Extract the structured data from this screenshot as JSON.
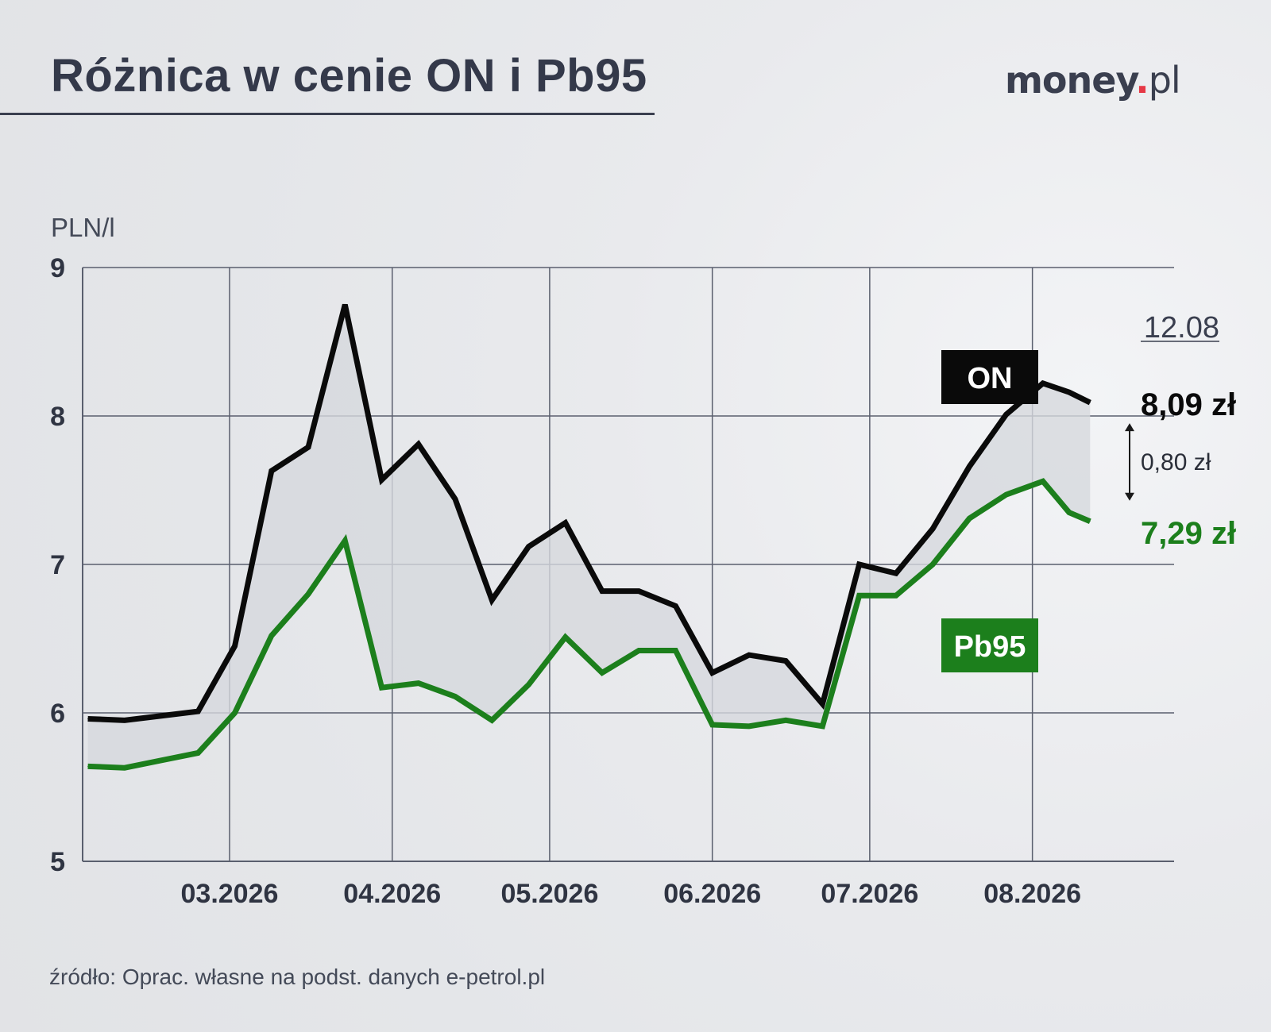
{
  "header": {
    "title": "Różnica w cenie ON i Pb95",
    "logo_text_bold": "money",
    "logo_dot": ".",
    "logo_text_light": "pl"
  },
  "source": "źródło: Oprac. własne na podst. danych e-petrol.pl",
  "colors": {
    "on": "#0a0a0a",
    "pb95": "#1c7f1c",
    "fill": "#d6d8dd",
    "grid": "#5a5f6e",
    "logo_dot": "#e63946"
  },
  "chart_data": {
    "type": "line",
    "ylabel": "PLN/l",
    "ylim": [
      5,
      9
    ],
    "yticks": [
      "5",
      "6",
      "7",
      "8",
      "9"
    ],
    "xticks": [
      "03.2026",
      "04.2026",
      "05.2026",
      "06.2026",
      "07.2026",
      "08.2026"
    ],
    "x": [
      "2026-02-02",
      "2026-02-09",
      "2026-02-16",
      "2026-02-23",
      "2026-03-02",
      "2026-03-09",
      "2026-03-16",
      "2026-03-23",
      "2026-03-30",
      "2026-04-06",
      "2026-04-13",
      "2026-04-20",
      "2026-04-27",
      "2026-05-04",
      "2026-05-11",
      "2026-05-18",
      "2026-05-25",
      "2026-06-01",
      "2026-06-08",
      "2026-06-15",
      "2026-06-22",
      "2026-06-29",
      "2026-07-06",
      "2026-07-13",
      "2026-07-20",
      "2026-07-27",
      "2026-08-03",
      "2026-08-08",
      "2026-08-12"
    ],
    "series": [
      {
        "name": "ON",
        "values": [
          5.96,
          5.95,
          5.98,
          6.01,
          6.45,
          7.63,
          7.79,
          8.75,
          7.57,
          7.81,
          7.44,
          6.76,
          7.12,
          7.28,
          6.82,
          6.82,
          6.72,
          6.27,
          6.39,
          6.35,
          6.06,
          7.0,
          6.94,
          7.24,
          7.66,
          8.01,
          8.22,
          8.16,
          8.09
        ]
      },
      {
        "name": "Pb95",
        "values": [
          5.64,
          5.63,
          5.68,
          5.73,
          6.0,
          6.52,
          6.8,
          7.16,
          6.17,
          6.2,
          6.11,
          5.95,
          6.19,
          6.51,
          6.27,
          6.42,
          6.42,
          5.92,
          5.91,
          5.95,
          5.91,
          6.79,
          6.79,
          7.0,
          7.31,
          7.47,
          7.56,
          7.35,
          7.29
        ]
      }
    ],
    "legend": [
      "ON",
      "Pb95"
    ],
    "date_label": "12.08",
    "end_labels": {
      "on": "8,09 zł",
      "pb95": "7,29 zł"
    },
    "difference_label": "0,80 zł",
    "grid": true
  }
}
